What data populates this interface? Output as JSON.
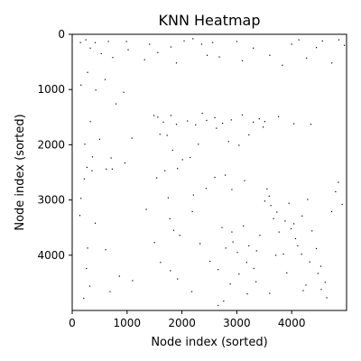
{
  "chart_data": {
    "type": "heatmap",
    "title": "KNN Heatmap",
    "xlabel": "Node index (sorted)",
    "ylabel": "Node index (sorted)",
    "xlim": [
      0,
      5000
    ],
    "ylim": [
      5000,
      0
    ],
    "x_ticks": [
      0,
      1000,
      2000,
      3000,
      4000
    ],
    "y_ticks": [
      0,
      1000,
      2000,
      3000,
      4000
    ],
    "x_tick_labels": [
      "0",
      "1000",
      "2000",
      "3000",
      "4000"
    ],
    "y_tick_labels": [
      "0",
      "1000",
      "2000",
      "3000",
      "4000"
    ],
    "cell_color": "#000000",
    "background_color": "#ffffff",
    "grid": false,
    "points": [
      [
        150,
        150
      ],
      [
        250,
        100
      ],
      [
        330,
        250
      ],
      [
        420,
        150
      ],
      [
        530,
        350
      ],
      [
        660,
        130
      ],
      [
        740,
        420
      ],
      [
        990,
        130
      ],
      [
        1020,
        280
      ],
      [
        1320,
        460
      ],
      [
        1410,
        180
      ],
      [
        1560,
        330
      ],
      [
        1800,
        230
      ],
      [
        1900,
        520
      ],
      [
        2040,
        120
      ],
      [
        2200,
        80
      ],
      [
        2360,
        180
      ],
      [
        2460,
        380
      ],
      [
        2560,
        150
      ],
      [
        2680,
        410
      ],
      [
        3000,
        130
      ],
      [
        3100,
        480
      ],
      [
        3300,
        250
      ],
      [
        3600,
        380
      ],
      [
        3830,
        560
      ],
      [
        4000,
        180
      ],
      [
        4130,
        100
      ],
      [
        4270,
        430
      ],
      [
        4450,
        240
      ],
      [
        4560,
        120
      ],
      [
        4730,
        520
      ],
      [
        4860,
        100
      ],
      [
        4960,
        200
      ],
      [
        160,
        920
      ],
      [
        280,
        690
      ],
      [
        330,
        1580
      ],
      [
        430,
        1010
      ],
      [
        500,
        1900
      ],
      [
        600,
        820
      ],
      [
        800,
        1260
      ],
      [
        940,
        1050
      ],
      [
        230,
        1990
      ],
      [
        270,
        2410
      ],
      [
        360,
        2470
      ],
      [
        620,
        2440
      ],
      [
        730,
        2440
      ],
      [
        1090,
        1880
      ],
      [
        160,
        2970
      ],
      [
        220,
        2620
      ],
      [
        370,
        2220
      ],
      [
        710,
        2240
      ],
      [
        960,
        2330
      ],
      [
        1490,
        1470
      ],
      [
        1560,
        1500
      ],
      [
        1660,
        1590
      ],
      [
        1730,
        1830
      ],
      [
        1800,
        1470
      ],
      [
        1900,
        1630
      ],
      [
        2100,
        1570
      ],
      [
        2250,
        1640
      ],
      [
        2370,
        1430
      ],
      [
        2450,
        1560
      ],
      [
        2600,
        1510
      ],
      [
        2740,
        1610
      ],
      [
        2900,
        1550
      ],
      [
        3100,
        1460
      ],
      [
        3300,
        1590
      ],
      [
        3410,
        1530
      ],
      [
        3510,
        1580
      ],
      [
        1600,
        1810
      ],
      [
        1830,
        2100
      ],
      [
        1920,
        2430
      ],
      [
        2010,
        2270
      ],
      [
        2150,
        2230
      ],
      [
        2300,
        1990
      ],
      [
        2630,
        1700
      ],
      [
        2850,
        1940
      ],
      [
        3040,
        2010
      ],
      [
        3220,
        1820
      ],
      [
        3480,
        1680
      ],
      [
        3760,
        1490
      ],
      [
        4040,
        1620
      ],
      [
        4350,
        1630
      ],
      [
        1540,
        2600
      ],
      [
        1690,
        2470
      ],
      [
        1750,
        2960
      ],
      [
        2210,
        2910
      ],
      [
        2440,
        2790
      ],
      [
        2600,
        2590
      ],
      [
        2790,
        2550
      ],
      [
        2910,
        2810
      ],
      [
        3140,
        2650
      ],
      [
        1780,
        3340
      ],
      [
        1850,
        3550
      ],
      [
        1960,
        3640
      ],
      [
        2190,
        3210
      ],
      [
        2330,
        3790
      ],
      [
        2510,
        4110
      ],
      [
        2660,
        4260
      ],
      [
        2800,
        3870
      ],
      [
        2910,
        3580
      ],
      [
        3010,
        3950
      ],
      [
        3120,
        3470
      ],
      [
        3220,
        3830
      ],
      [
        3310,
        4240
      ],
      [
        3420,
        3640
      ],
      [
        3510,
        3020
      ],
      [
        3590,
        2930
      ],
      [
        3670,
        3340
      ],
      [
        3770,
        3580
      ],
      [
        3850,
        3980
      ],
      [
        3950,
        3060
      ],
      [
        4040,
        3430
      ],
      [
        4110,
        3830
      ],
      [
        4190,
        3290
      ],
      [
        4290,
        2990
      ],
      [
        4370,
        3560
      ],
      [
        4450,
        3880
      ],
      [
        4530,
        4200
      ],
      [
        4610,
        4490
      ],
      [
        4730,
        3210
      ],
      [
        4850,
        2680
      ],
      [
        4920,
        3080
      ],
      [
        3910,
        4320
      ],
      [
        4260,
        4540
      ],
      [
        3600,
        4690
      ],
      [
        4640,
        4770
      ],
      [
        140,
        3280
      ],
      [
        280,
        3870
      ],
      [
        420,
        3420
      ],
      [
        610,
        3900
      ],
      [
        260,
        4240
      ],
      [
        320,
        4560
      ],
      [
        690,
        4660
      ],
      [
        860,
        4380
      ],
      [
        1350,
        3170
      ],
      [
        1500,
        3770
      ],
      [
        1610,
        4130
      ],
      [
        1790,
        4280
      ],
      [
        1920,
        4430
      ],
      [
        2180,
        4660
      ],
      [
        2760,
        4830
      ],
      [
        2660,
        4910
      ],
      [
        3190,
        4700
      ],
      [
        1100,
        4460
      ],
      [
        210,
        4780
      ],
      [
        3550,
        2800
      ],
      [
        3620,
        3100
      ],
      [
        3730,
        3220
      ],
      [
        3880,
        3380
      ],
      [
        3990,
        3520
      ],
      [
        4070,
        3700
      ],
      [
        4180,
        3980
      ],
      [
        4330,
        4120
      ],
      [
        4480,
        4330
      ],
      [
        3360,
        3920
      ],
      [
        3180,
        4130
      ],
      [
        3040,
        4340
      ],
      [
        2930,
        3760
      ],
      [
        2730,
        3500
      ],
      [
        2880,
        4520
      ],
      [
        3350,
        4480
      ],
      [
        3710,
        4000
      ],
      [
        4210,
        4640
      ],
      [
        4540,
        4620
      ],
      [
        4800,
        2850
      ]
    ]
  }
}
